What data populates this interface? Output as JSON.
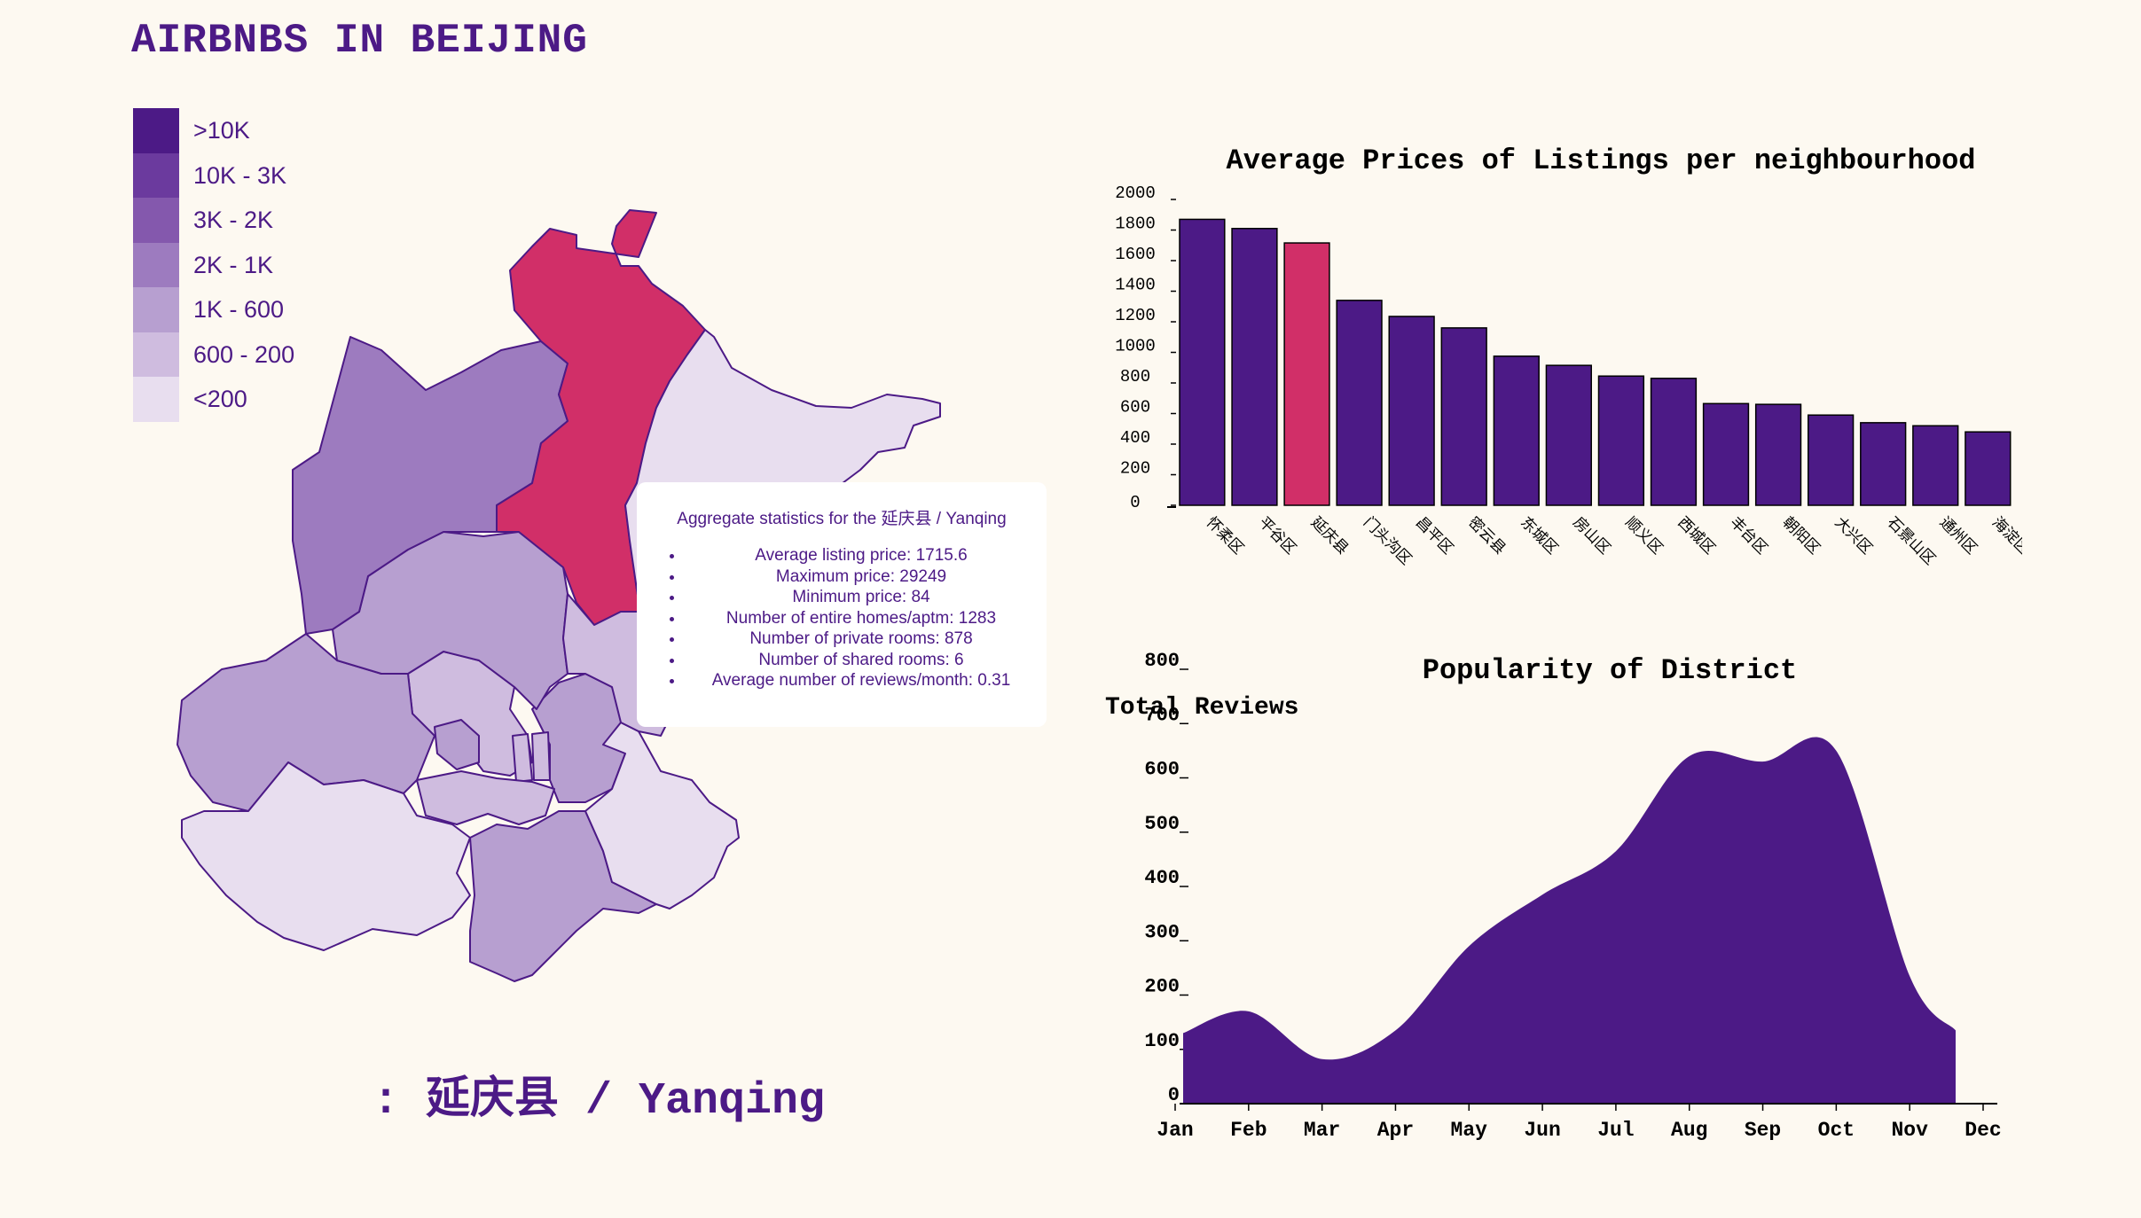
{
  "page": {
    "title": "AIRBNBS IN BEIJING"
  },
  "legend": {
    "items": [
      {
        "label": ">10K",
        "color": "#4c1a86"
      },
      {
        "label": "10K - 3K",
        "color": "#6b3a9e"
      },
      {
        "label": "3K - 2K",
        "color": "#8458ad"
      },
      {
        "label": "2K - 1K",
        "color": "#9d7bbf"
      },
      {
        "label": "1K - 600",
        "color": "#b79fd0"
      },
      {
        "label": "600 - 200",
        "color": "#cfbcdf"
      },
      {
        "label": "<200",
        "color": "#e8deef"
      }
    ]
  },
  "map": {
    "highlight_color": "#d12f68",
    "border_color": "#4c1a86",
    "selected": ": 延庆县 / Yanqing"
  },
  "tooltip": {
    "title": "Aggregate statistics for the 延庆县 / Yanqing",
    "stats": [
      "Average listing price: 1715.6",
      "Maximum price: 29249",
      "Minimum price: 84",
      "Number of entire homes/aptm: 1283",
      "Number of private rooms: 878",
      "Number of shared rooms: 6",
      "Average number of reviews/month: 0.31"
    ]
  },
  "chart_data": [
    {
      "type": "bar",
      "title": "Average Prices of Listings per neighbourhood",
      "categories": [
        "怀柔区",
        "平谷区",
        "延庆县",
        "门头沟区",
        "昌平区",
        "密云县",
        "东城区",
        "房山区",
        "顺义区",
        "西城区",
        "丰台区",
        "朝阳区",
        "大兴区",
        "石景山区",
        "通州区",
        "海淀区"
      ],
      "values": [
        1870,
        1810,
        1715.6,
        1340,
        1235,
        1160,
        975,
        915,
        845,
        830,
        665,
        660,
        590,
        540,
        520,
        480
      ],
      "highlight_category": "延庆县",
      "bar_color": "#4c1a86",
      "highlight_color": "#d12f68",
      "ylim": [
        0,
        2000
      ],
      "yticks": [
        0,
        200,
        400,
        600,
        800,
        1000,
        1200,
        1400,
        1600,
        1800,
        2000
      ]
    },
    {
      "type": "area",
      "title": "Popularity of District",
      "ylabel": "Total Reviews",
      "x": [
        "Jan",
        "Feb",
        "Mar",
        "Apr",
        "May",
        "Jun",
        "Jul",
        "Aug",
        "Sep",
        "Oct",
        "Nov",
        "Dec"
      ],
      "values": [
        130,
        170,
        82,
        135,
        290,
        385,
        465,
        640,
        630,
        650,
        235,
        135
      ],
      "ylim": [
        0,
        800
      ],
      "yticks": [
        0,
        100,
        200,
        300,
        400,
        500,
        600,
        700,
        800
      ],
      "color": "#4c1a86"
    }
  ]
}
